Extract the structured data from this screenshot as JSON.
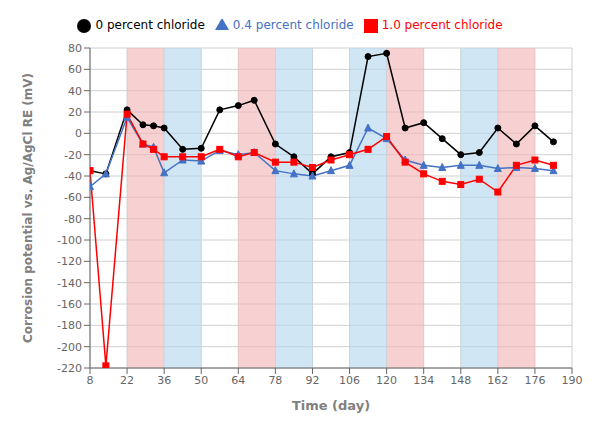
{
  "chart_data": {
    "type": "line",
    "xlabel": "Time (day)",
    "ylabel": "Corrosion potential vs. Ag/AgCl RE (mV)",
    "xlim": [
      8,
      190
    ],
    "ylim": [
      -220,
      80
    ],
    "xticks": [
      8,
      22,
      36,
      50,
      64,
      78,
      92,
      106,
      120,
      134,
      148,
      162,
      176,
      190
    ],
    "yticks": [
      -220,
      -200,
      -180,
      -160,
      -140,
      -120,
      -100,
      -80,
      -60,
      -40,
      -20,
      0,
      20,
      40,
      60,
      80
    ],
    "grid": true,
    "legend": "top",
    "x": [
      8,
      14,
      22,
      28,
      32,
      36,
      43,
      50,
      57,
      64,
      70,
      78,
      85,
      92,
      99,
      106,
      113,
      120,
      127,
      134,
      141,
      148,
      155,
      162,
      169,
      176,
      183
    ],
    "series": [
      {
        "name": "0 percent chloride",
        "color": "#000000",
        "marker": "circle",
        "values": [
          -35,
          -38,
          22,
          8,
          7,
          5,
          -15,
          -14,
          22,
          26,
          31,
          -10,
          -22,
          -38,
          -22,
          -18,
          72,
          75,
          5,
          10,
          -5,
          -20,
          -18,
          5,
          -10,
          7,
          -8
        ]
      },
      {
        "name": "0.4 percent chloride",
        "color": "#4472c4",
        "marker": "triangle",
        "values": [
          -50,
          -38,
          15,
          -10,
          -13,
          -37,
          -25,
          -26,
          -16,
          -20,
          -18,
          -35,
          -38,
          -40,
          -35,
          -30,
          5,
          -5,
          -25,
          -30,
          -32,
          -30,
          -30,
          -33,
          -32,
          -33,
          -35
        ]
      },
      {
        "name": "1.0 percent chloride",
        "color": "#ff0000",
        "marker": "square",
        "values": [
          -35,
          -218,
          18,
          -10,
          -15,
          -22,
          -22,
          -22,
          -15,
          -22,
          -18,
          -27,
          -27,
          -32,
          -25,
          -20,
          -15,
          -3,
          -27,
          -38,
          -45,
          -48,
          -43,
          -55,
          -30,
          -25,
          -30
        ]
      }
    ],
    "bands": [
      {
        "x": [
          22,
          36
        ],
        "color": "#f2b8b8"
      },
      {
        "x": [
          64,
          78
        ],
        "color": "#f2b8b8"
      },
      {
        "x": [
          120,
          134
        ],
        "color": "#f2b8b8"
      },
      {
        "x": [
          162,
          176
        ],
        "color": "#f2b8b8"
      },
      {
        "x": [
          36,
          50
        ],
        "color": "#b8d8f0"
      },
      {
        "x": [
          78,
          92
        ],
        "color": "#b8d8f0"
      },
      {
        "x": [
          106,
          120
        ],
        "color": "#b8d8f0"
      },
      {
        "x": [
          148,
          162
        ],
        "color": "#b8d8f0"
      }
    ]
  }
}
